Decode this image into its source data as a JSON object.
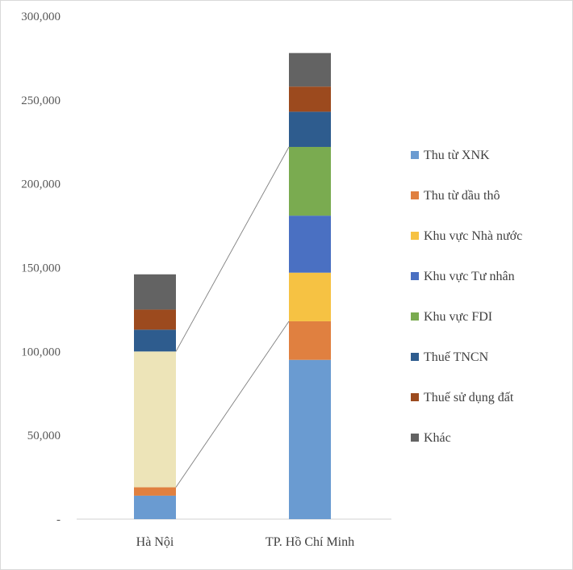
{
  "chart_data": {
    "type": "bar",
    "stacked": true,
    "categories": [
      "Hà Nội",
      "TP. Hồ Chí Minh"
    ],
    "ylim": [
      0,
      300000
    ],
    "yticks": [
      0,
      50000,
      100000,
      150000,
      200000,
      250000,
      300000
    ],
    "ytick_labels": [
      "-",
      "50,000",
      "100,000",
      "150,000",
      "200,000",
      "250,000",
      "300,000"
    ],
    "legend_position": "right",
    "grid": false,
    "series_connectors": true,
    "series": [
      {
        "name": "Thu từ XNK",
        "color": "#6a9bd1",
        "values": [
          14000,
          95000
        ]
      },
      {
        "name": "Thu từ dầu thô",
        "color": "#e08040",
        "values": [
          5000,
          23000
        ]
      },
      {
        "name": "Khu vực Nhà nước",
        "color": "#f6c243",
        "hatched_first": true,
        "values": [
          81000,
          29000
        ]
      },
      {
        "name": "Khu vực Tư nhân",
        "color": "#4a70c2",
        "values": [
          0,
          34000
        ]
      },
      {
        "name": "Khu vực FDI",
        "color": "#7aab50",
        "values": [
          0,
          41000
        ]
      },
      {
        "name": "Thuế TNCN",
        "color": "#2e5c8e",
        "values": [
          13000,
          21000
        ]
      },
      {
        "name": "Thuế sử dụng đất",
        "color": "#9c4a1e",
        "values": [
          12000,
          15000
        ]
      },
      {
        "name": "Khác",
        "color": "#636363",
        "values": [
          21000,
          20000
        ]
      }
    ],
    "special_segment_colors": {
      "0": {
        "2": "#ede4b8"
      }
    }
  }
}
